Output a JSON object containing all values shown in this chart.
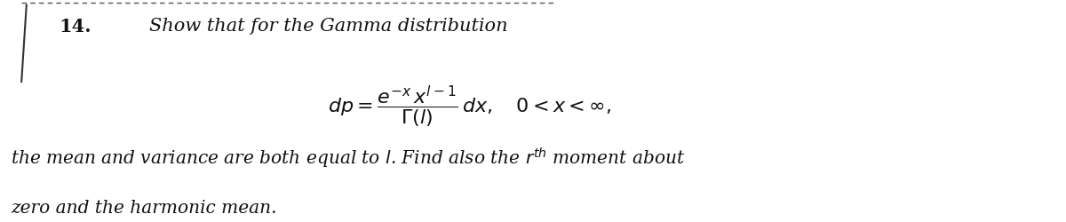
{
  "background_color": "#ffffff",
  "fig_width": 12.0,
  "fig_height": 2.5,
  "dpi": 100,
  "text_color": "#111111",
  "font_size_heading": 15,
  "font_size_formula": 14,
  "font_size_body": 14.5
}
